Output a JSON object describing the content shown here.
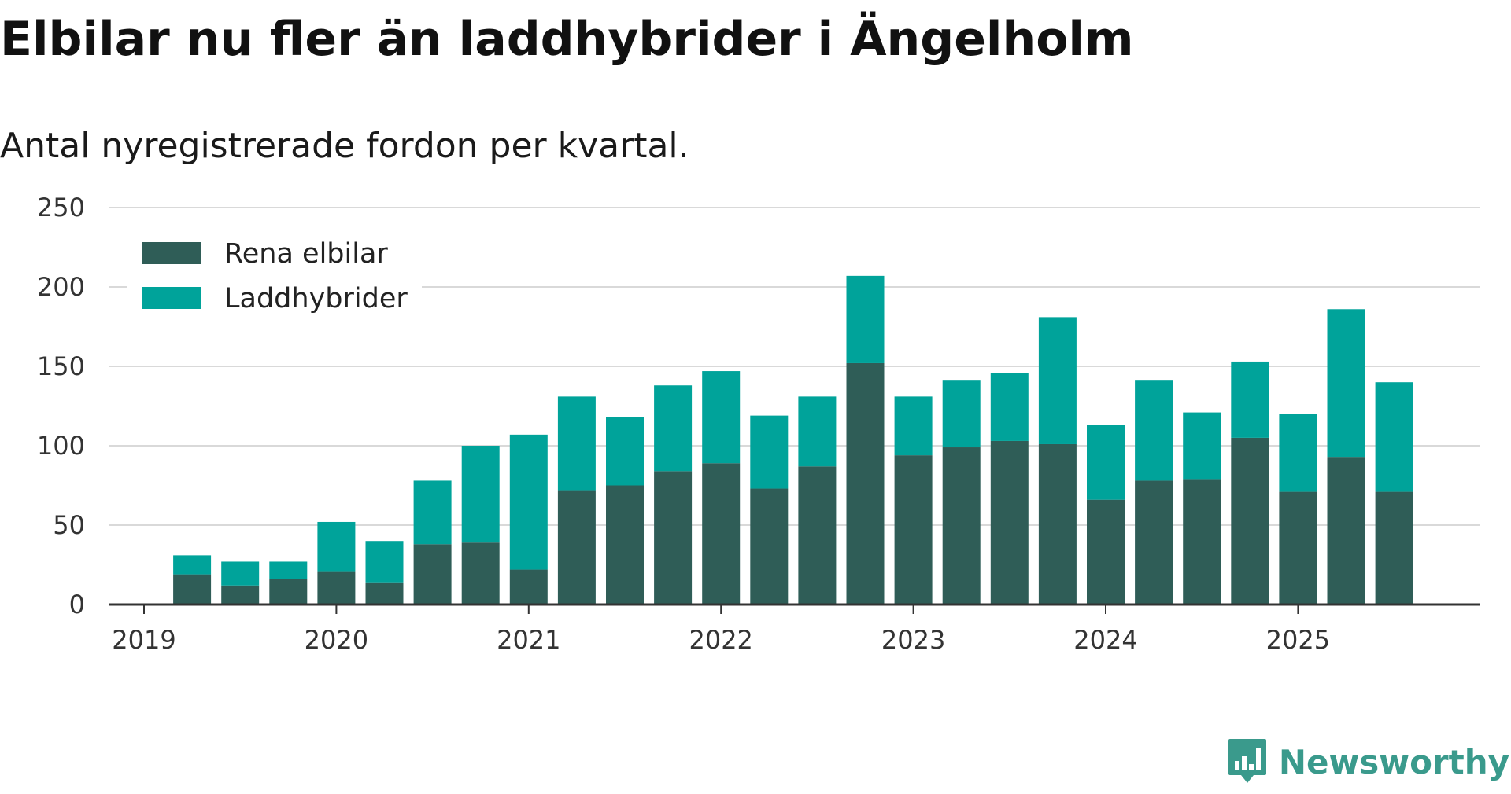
{
  "title": "Elbilar nu fler än laddhybrider i Ängelholm",
  "subtitle": "Antal nyregistrerade fordon per kvartal.",
  "brand": {
    "name": "Newsworthy",
    "icon": "newsworthy-logo-icon",
    "color": "#3a9a8c"
  },
  "colors": {
    "electric": "#2f5d57",
    "hybrid": "#00a39a",
    "grid": "#d9d9d9",
    "axis": "#333333"
  },
  "chart_data": {
    "type": "bar",
    "stacked": true,
    "ylim": [
      0,
      250
    ],
    "yticks": [
      0,
      50,
      100,
      150,
      200,
      250
    ],
    "xticks": [
      {
        "label": "2019",
        "quarter_index": 0
      },
      {
        "label": "2020",
        "quarter_index": 4
      },
      {
        "label": "2021",
        "quarter_index": 8
      },
      {
        "label": "2022",
        "quarter_index": 12
      },
      {
        "label": "2023",
        "quarter_index": 16
      },
      {
        "label": "2024",
        "quarter_index": 20
      },
      {
        "label": "2025",
        "quarter_index": 24
      }
    ],
    "categories": [
      "2019 Q2",
      "2019 Q3",
      "2019 Q4",
      "2020 Q1",
      "2020 Q2",
      "2020 Q3",
      "2020 Q4",
      "2021 Q1",
      "2021 Q2",
      "2021 Q3",
      "2021 Q4",
      "2022 Q1",
      "2022 Q2",
      "2022 Q3",
      "2022 Q4",
      "2023 Q1",
      "2023 Q2",
      "2023 Q3",
      "2023 Q4",
      "2024 Q1",
      "2024 Q2",
      "2024 Q3",
      "2024 Q4",
      "2025 Q1",
      "2025 Q2",
      "2025 Q3"
    ],
    "series": [
      {
        "name": "Rena elbilar",
        "color": "#2f5d57",
        "values": [
          19,
          12,
          16,
          21,
          14,
          38,
          39,
          22,
          72,
          75,
          84,
          89,
          73,
          87,
          152,
          94,
          99,
          103,
          101,
          66,
          78,
          79,
          105,
          71,
          93,
          71
        ]
      },
      {
        "name": "Laddhybrider",
        "color": "#00a39a",
        "values": [
          12,
          15,
          11,
          31,
          26,
          40,
          61,
          85,
          59,
          43,
          54,
          58,
          46,
          44,
          55,
          37,
          42,
          43,
          80,
          47,
          63,
          42,
          48,
          49,
          93,
          69
        ]
      }
    ],
    "first_category_quarter_index": 1,
    "xlabel": "",
    "ylabel": "",
    "grid": true,
    "legend_position": "top-left"
  }
}
